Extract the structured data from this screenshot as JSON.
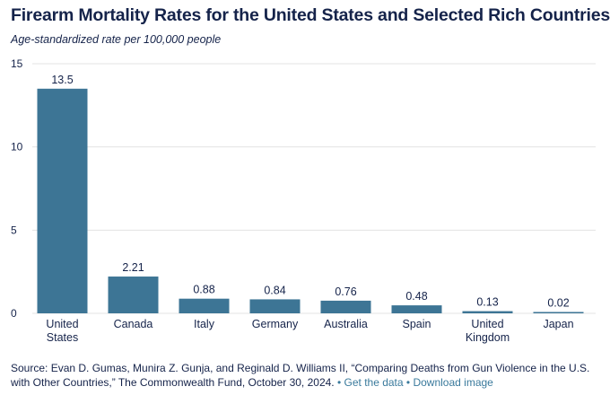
{
  "title": "Firearm Mortality Rates for the United States and Selected Rich Countries",
  "subtitle": "Age-standardized rate per 100,000 people",
  "chart_data": {
    "type": "bar",
    "title": "Firearm Mortality Rates for the United States and Selected Rich Countries",
    "subtitle": "Age-standardized rate per 100,000 people",
    "categories": [
      [
        "United",
        "States"
      ],
      [
        "Canada"
      ],
      [
        "Italy"
      ],
      [
        "Germany"
      ],
      [
        "Australia"
      ],
      [
        "Spain"
      ],
      [
        "United",
        "Kingdom"
      ],
      [
        "Japan"
      ]
    ],
    "values": [
      13.5,
      2.21,
      0.88,
      0.84,
      0.76,
      0.48,
      0.13,
      0.02
    ],
    "value_labels": [
      "13.5",
      "2.21",
      "0.88",
      "0.84",
      "0.76",
      "0.48",
      "0.13",
      "0.02"
    ],
    "yticks": [
      0,
      5,
      10,
      15
    ],
    "ytick_labels": [
      "0",
      "5",
      "10",
      "15"
    ],
    "ylim": [
      0,
      15
    ],
    "grid": true,
    "legend": "none",
    "bar_color": "#3d7595",
    "grid_color": "#e3e3e3"
  },
  "source": {
    "text": "Source: Evan D. Gumas, Munira Z. Gunja, and Reginald D. Williams II, “Comparing Deaths from Gun Violence in the U.S. with Other Countries,” The Commonwealth Fund, October 30, 2024.",
    "separator": "•",
    "get_data": "Get the data",
    "download": "Download image"
  }
}
